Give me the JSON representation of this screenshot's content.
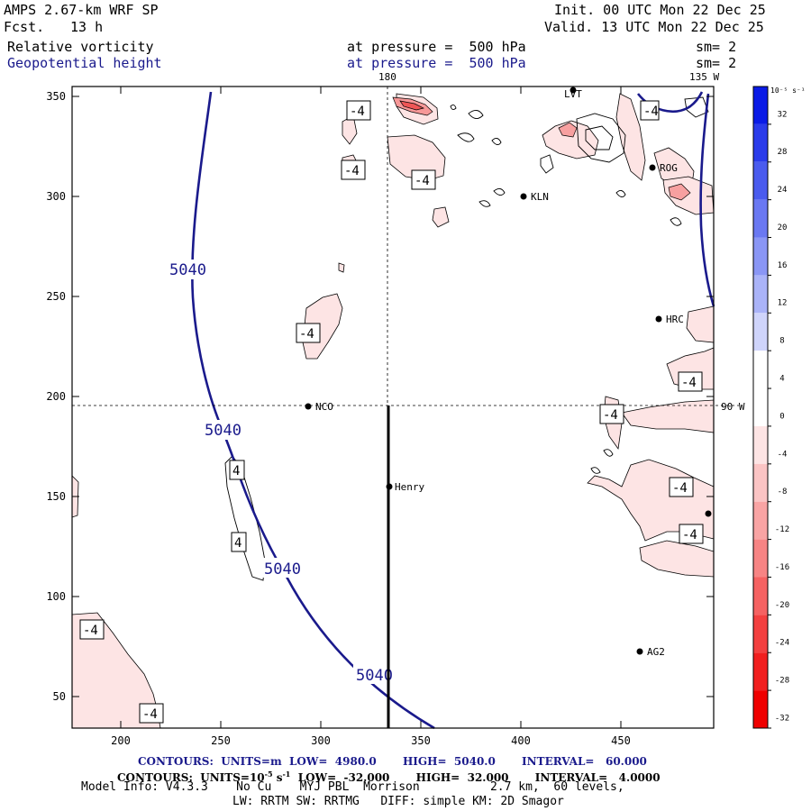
{
  "header": {
    "model": "AMPS 2.67-km WRF SP",
    "fcst_label": "Fcst.",
    "fcst_value": "13 h",
    "init": "Init. 00 UTC Mon 22 Dec 25",
    "valid": "Valid. 13 UTC Mon 22 Dec 25",
    "field1": "Relative vorticity",
    "field1_level": "at pressure =  500 hPa",
    "field1_sm": "sm= 2",
    "field2": "Geopotential height",
    "field2_level": "at pressure =  500 hPa",
    "field2_sm": "sm= 2"
  },
  "map": {
    "x_ticks": [
      "200",
      "250",
      "300",
      "350",
      "400",
      "450"
    ],
    "y_ticks": [
      "350",
      "300",
      "250",
      "200",
      "150",
      "100",
      "50"
    ],
    "meridian_top_label": "180",
    "meridian_right_label": "135 W",
    "parallel_right_label": "90 W",
    "stations": [
      {
        "id": "KLN",
        "label": "KLN"
      },
      {
        "id": "HRC",
        "label": "HRC"
      },
      {
        "id": "NCO",
        "label": "NCO"
      },
      {
        "id": "Henry",
        "label": "Henry"
      },
      {
        "id": "AG2",
        "label": "AG2"
      },
      {
        "id": "ROG",
        "label": "ROG"
      },
      {
        "id": "LVT",
        "label": "LVT"
      }
    ],
    "height_contour_label": "5040",
    "vorticity_labels": [
      "-4",
      "-4",
      "-4",
      "-4",
      "-4",
      "-4",
      "4",
      "4",
      "-4",
      "-4",
      "-4",
      "-4",
      "-4"
    ]
  },
  "colorbar": {
    "unit_label": "10⁻⁵ s⁻¹",
    "ticks": [
      "32",
      "28",
      "24",
      "20",
      "16",
      "12",
      "8",
      "4",
      "0",
      "-4",
      "-8",
      "-12",
      "-16",
      "-20",
      "-24",
      "-28",
      "-32"
    ],
    "colors": [
      "#0a1be6",
      "#2a3bea",
      "#4a5bee",
      "#6a78f2",
      "#8a96f5",
      "#aab3f8",
      "#cfd4fb",
      "#ffffff",
      "#ffffff",
      "#fde4e4",
      "#fbc4c4",
      "#f9a4a4",
      "#f78484",
      "#f56262",
      "#f34040",
      "#f11f1f",
      "#ef0000"
    ]
  },
  "footer": {
    "line1": "CONTOURS:  UNITS=m  LOW=  4980.0       HIGH=  5040.0       INTERVAL=   60.000",
    "line2_a": "CONTOURS:  UNITS=10",
    "line2_sup1": "-5",
    "line2_b": " s",
    "line2_sup2": "-1",
    "line2_c": "  LOW=  -32.000       HIGH=  32.000       INTERVAL=   4.0000",
    "line3": "Model Info: V4.3.3    No Cu    MYJ PBL  Morrison          2.7 km,  60 levels,",
    "line4": "LW: RRTM SW: RRTMG   DIFF: simple KM: 2D Smagor"
  },
  "styles": {
    "height_contour_color": "#1a1a8c",
    "vorticity_fill_color": "#fde4e4"
  }
}
